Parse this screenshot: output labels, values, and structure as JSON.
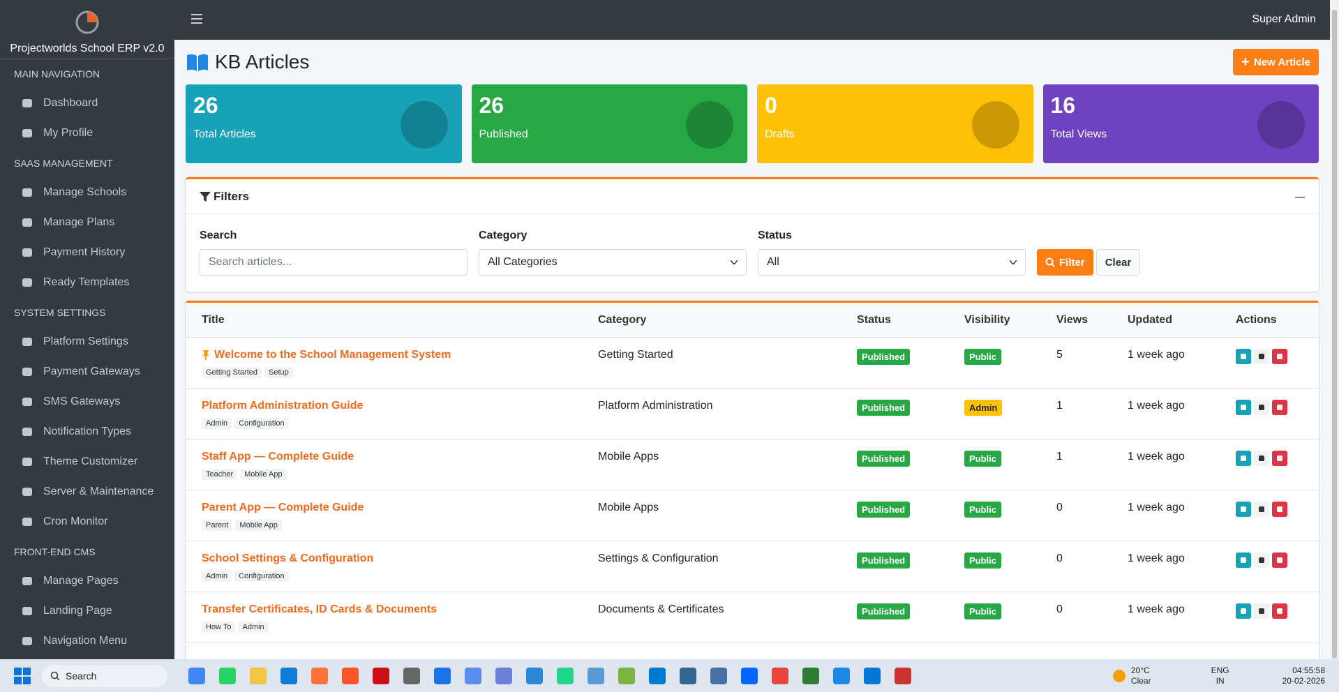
{
  "sidebar": {
    "brand": "Projectworlds School ERP v2.0",
    "sections": [
      {
        "title": "MAIN NAVIGATION",
        "items": [
          "Dashboard",
          "My Profile"
        ]
      },
      {
        "title": "SAAS MANAGEMENT",
        "items": [
          "Manage Schools",
          "Manage Plans",
          "Payment History",
          "Ready Templates"
        ]
      },
      {
        "title": "SYSTEM SETTINGS",
        "items": [
          "Platform Settings",
          "Payment Gateways",
          "SMS Gateways",
          "Notification Types",
          "Theme Customizer",
          "Server & Maintenance",
          "Cron Monitor"
        ]
      },
      {
        "title": "FRONT-END CMS",
        "items": [
          "Manage Pages",
          "Landing Page",
          "Navigation Menu"
        ]
      }
    ]
  },
  "topbar": {
    "user": "Super Admin"
  },
  "page": {
    "title": "KB Articles",
    "new_button": "New Article"
  },
  "stats": [
    {
      "value": "26",
      "label": "Total Articles",
      "color": "#17a2b8"
    },
    {
      "value": "26",
      "label": "Published",
      "color": "#28a745"
    },
    {
      "value": "0",
      "label": "Drafts",
      "color": "#ffc107"
    },
    {
      "value": "16",
      "label": "Total Views",
      "color": "#6f42c1"
    }
  ],
  "filters": {
    "title": "Filters",
    "search_label": "Search",
    "search_placeholder": "Search articles...",
    "category_label": "Category",
    "category_value": "All Categories",
    "status_label": "Status",
    "status_value": "All",
    "filter_button": "Filter",
    "clear_button": "Clear"
  },
  "table": {
    "columns": [
      "Title",
      "Category",
      "Status",
      "Visibility",
      "Views",
      "Updated",
      "Actions"
    ],
    "rows": [
      {
        "title": "Welcome to the School Management System",
        "pinned": true,
        "tags": [
          "Getting Started",
          "Setup"
        ],
        "category": "Getting Started",
        "status": "Published",
        "visibility": "Public",
        "visibility_color": "#28a745",
        "views": "5",
        "updated": "1 week ago"
      },
      {
        "title": "Platform Administration Guide",
        "pinned": false,
        "tags": [
          "Admin",
          "Configuration"
        ],
        "category": "Platform Administration",
        "status": "Published",
        "visibility": "Admin",
        "visibility_color": "#ffc107",
        "views": "1",
        "updated": "1 week ago"
      },
      {
        "title": "Staff App — Complete Guide",
        "pinned": false,
        "tags": [
          "Teacher",
          "Mobile App"
        ],
        "category": "Mobile Apps",
        "status": "Published",
        "visibility": "Public",
        "visibility_color": "#28a745",
        "views": "1",
        "updated": "1 week ago"
      },
      {
        "title": "Parent App — Complete Guide",
        "pinned": false,
        "tags": [
          "Parent",
          "Mobile App"
        ],
        "category": "Mobile Apps",
        "status": "Published",
        "visibility": "Public",
        "visibility_color": "#28a745",
        "views": "0",
        "updated": "1 week ago"
      },
      {
        "title": "School Settings & Configuration",
        "pinned": false,
        "tags": [
          "Admin",
          "Configuration"
        ],
        "category": "Settings & Configuration",
        "status": "Published",
        "visibility": "Public",
        "visibility_color": "#28a745",
        "views": "0",
        "updated": "1 week ago"
      },
      {
        "title": "Transfer Certificates, ID Cards & Documents",
        "pinned": false,
        "tags": [
          "How To",
          "Admin"
        ],
        "category": "Documents & Certificates",
        "status": "Published",
        "visibility": "Public",
        "visibility_color": "#28a745",
        "views": "0",
        "updated": "1 week ago"
      }
    ]
  },
  "taskbar": {
    "search": "Search",
    "weather_temp": "20°C",
    "weather_desc": "Clear",
    "lang": "ENG",
    "region": "IN",
    "time": "04:55:58",
    "date": "20-02-2026"
  }
}
